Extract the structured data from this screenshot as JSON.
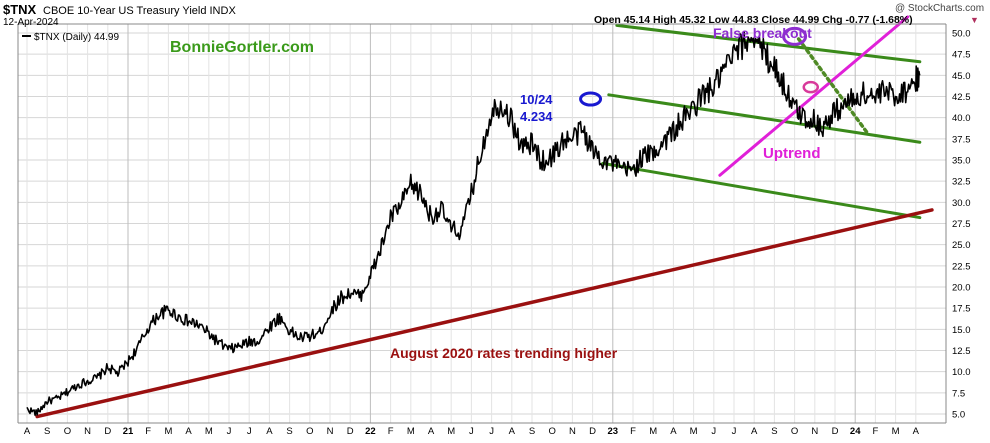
{
  "header": {
    "symbol": "$TNX",
    "name": "CBOE 10-Year US Treasury Yield INDX",
    "date": "12-Apr-2024",
    "watermark": "@ StockCharts.com",
    "ohlc": "Open 45.14  High 45.32  Low 44.83  Close 44.99  Chg -0.77 (-1.68%)",
    "ohlc_marker": "▼"
  },
  "legend": {
    "label": "$TNX (Daily) 44.99"
  },
  "colors": {
    "price": "#000000",
    "channel": "#3a8a1a",
    "uptrend": "#e020d8",
    "long_trend": "#9a1010",
    "circle_blue": "#1818d0",
    "circle_purple": "#8e2ed0",
    "circle_pink": "#d83a9a",
    "dotted": "#4f8a25",
    "brand": "#3a9a1a"
  },
  "annotations": {
    "brand": "BonnieGortler.com",
    "peak_date": "10/24",
    "peak_value": "4.234",
    "false_breakout": "False breakout",
    "uptrend": "Uptrend",
    "august": "August 2020 rates trending higher"
  },
  "chart_data": {
    "type": "line",
    "title": "$TNX CBOE 10-Year US Treasury Yield INDX",
    "ylim": [
      4.5,
      52
    ],
    "yticks": [
      5.0,
      7.5,
      10.0,
      12.5,
      15.0,
      17.5,
      20.0,
      22.5,
      25.0,
      27.5,
      30.0,
      32.5,
      35.0,
      37.5,
      40.0,
      42.5,
      45.0,
      47.5,
      50.0
    ],
    "ytick_labels": [
      "5.0",
      "7.5",
      "10.0",
      "12.5",
      "15.0",
      "17.5",
      "20.0",
      "22.5",
      "25.0",
      "27.5",
      "30.0",
      "32.5",
      "35.0",
      "37.5",
      "40.0",
      "42.5",
      "45.0",
      "47.5",
      "50.0"
    ],
    "xticks": [
      "A",
      "S",
      "O",
      "N",
      "D",
      "21",
      "F",
      "M",
      "A",
      "M",
      "J",
      "J",
      "A",
      "S",
      "O",
      "N",
      "D",
      "22",
      "F",
      "M",
      "A",
      "M",
      "J",
      "J",
      "A",
      "S",
      "O",
      "N",
      "D",
      "23",
      "F",
      "M",
      "A",
      "M",
      "J",
      "J",
      "A",
      "S",
      "O",
      "N",
      "D",
      "24",
      "F",
      "M",
      "A"
    ],
    "grid": true,
    "legend_position": "top-left",
    "series": [
      {
        "name": "$TNX (Daily) 44.99",
        "months": [
          0,
          0.5,
          1,
          1.5,
          2,
          2.5,
          3,
          3.5,
          4,
          4.5,
          5,
          5.5,
          6,
          6.5,
          7,
          7.5,
          8,
          8.5,
          9,
          9.5,
          10,
          10.5,
          11,
          11.5,
          12,
          12.5,
          13,
          13.5,
          14,
          14.5,
          15,
          15.5,
          16,
          16.5,
          17,
          17.5,
          18,
          18.5,
          19,
          19.5,
          20,
          20.5,
          21,
          21.5,
          22,
          22.5,
          23,
          23.5,
          24,
          24.5,
          25,
          25.5,
          26,
          26.5,
          27,
          27.5,
          28,
          28.5,
          29,
          29.5,
          30,
          30.5,
          31,
          31.5,
          32,
          32.5,
          33,
          33.5,
          34,
          34.5,
          35,
          35.5,
          36,
          36.5,
          37,
          37.5,
          38,
          38.5,
          39,
          39.5,
          40,
          40.5,
          41,
          41.5,
          42,
          42.5,
          43,
          43.5,
          44,
          44.2
        ],
        "values": [
          5.6,
          5.1,
          6.5,
          6.8,
          7.6,
          8.4,
          8.9,
          9.3,
          10.5,
          9.8,
          11.2,
          12.9,
          15.2,
          16.7,
          17.3,
          16.5,
          15.9,
          15.5,
          14.5,
          13.4,
          12.6,
          13.0,
          13.5,
          13.7,
          15.3,
          16.4,
          14.8,
          14.0,
          14.2,
          14.6,
          16.9,
          18.7,
          19.3,
          18.9,
          21.3,
          24.4,
          28.2,
          29.6,
          32.1,
          31.0,
          28.3,
          29.2,
          26.8,
          26.5,
          31.1,
          36.2,
          40.8,
          41.7,
          39.6,
          36.5,
          36.9,
          34.8,
          35.4,
          37.2,
          37.5,
          38.6,
          36.1,
          35.2,
          34.6,
          33.7,
          33.9,
          35.4,
          35.8,
          37.2,
          38.4,
          39.8,
          41.2,
          42.8,
          43.6,
          45.6,
          47.4,
          48.8,
          49.8,
          47.6,
          46.0,
          43.7,
          41.0,
          40.1,
          39.6,
          38.9,
          40.8,
          41.6,
          42.3,
          42.9,
          42.4,
          43.1,
          42.6,
          43.3,
          44.5,
          44.99
        ]
      }
    ],
    "trendlines": [
      {
        "name": "channel-upper",
        "points": [
          [
            29.2,
            50.9
          ],
          [
            44.2,
            46.6
          ]
        ]
      },
      {
        "name": "channel-middle",
        "points": [
          [
            28.8,
            42.7
          ],
          [
            44.2,
            37.1
          ]
        ]
      },
      {
        "name": "channel-lower",
        "points": [
          [
            28.5,
            34.6
          ],
          [
            44.2,
            28.2
          ]
        ]
      },
      {
        "name": "uptrend",
        "points": [
          [
            34.3,
            33.2
          ],
          [
            43.6,
            51.9
          ]
        ]
      },
      {
        "name": "long-trend",
        "points": [
          [
            0.5,
            4.7
          ],
          [
            44.8,
            29.1
          ]
        ]
      },
      {
        "name": "dotted-decline",
        "points": [
          [
            38.2,
            49.3
          ],
          [
            41.6,
            38.2
          ]
        ]
      }
    ],
    "markers": [
      {
        "name": "peak-oct22",
        "month": 27.9,
        "value": 42.2,
        "shape": "ellipse"
      },
      {
        "name": "false-breakout",
        "month": 38.0,
        "value": 49.6,
        "shape": "ellipse"
      },
      {
        "name": "retest",
        "month": 38.8,
        "value": 43.6,
        "shape": "ellipse"
      }
    ]
  }
}
